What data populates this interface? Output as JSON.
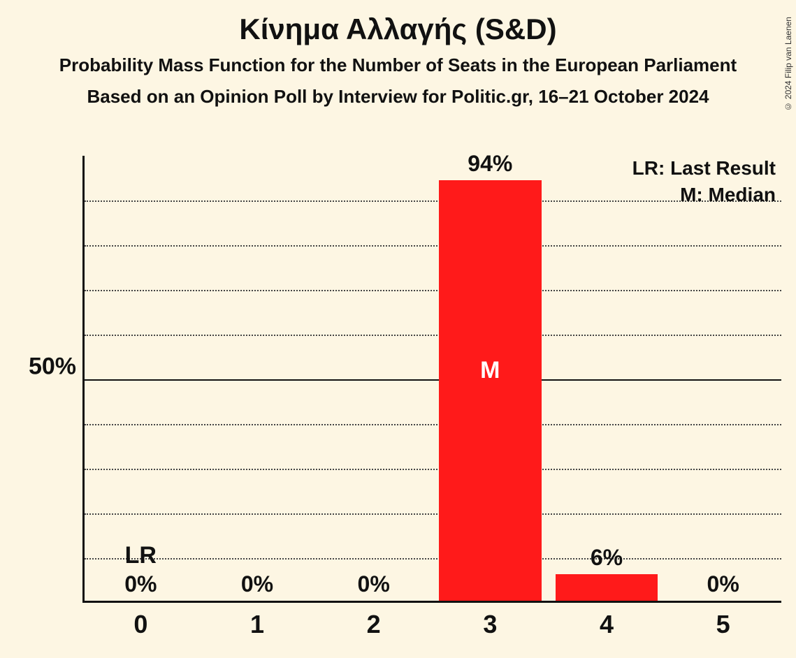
{
  "title": "Κίνημα Αλλαγής (S&D)",
  "subtitle": "Probability Mass Function for the Number of Seats in the European Parliament",
  "subtitle2": "Based on an Opinion Poll by Interview for Politic.gr, 16–21 October 2024",
  "copyright": "© 2024 Filip van Laenen",
  "chart": {
    "type": "bar",
    "background_color": "#fdf6e3",
    "bar_color": "#ff1a1a",
    "axis_color": "#111111",
    "grid_color": "#444444",
    "categories": [
      "0",
      "1",
      "2",
      "3",
      "4",
      "5"
    ],
    "values": [
      0,
      0,
      0,
      94,
      6,
      0
    ],
    "value_labels": [
      "0%",
      "0%",
      "0%",
      "94%",
      "6%",
      "0%"
    ],
    "markers": {
      "0": "LR",
      "3": "M"
    },
    "marker_inside": {
      "3": true
    },
    "ylim": [
      0,
      100
    ],
    "y_major_tick": 50,
    "y_major_label": "50%",
    "y_minor_step": 10,
    "bar_width_ratio": 0.88,
    "title_fontsize": 42,
    "subtitle_fontsize": 26,
    "label_fontsize": 32,
    "tick_fontsize": 36,
    "legend_fontsize": 28
  },
  "legend": {
    "lr": "LR: Last Result",
    "m": "M: Median"
  }
}
